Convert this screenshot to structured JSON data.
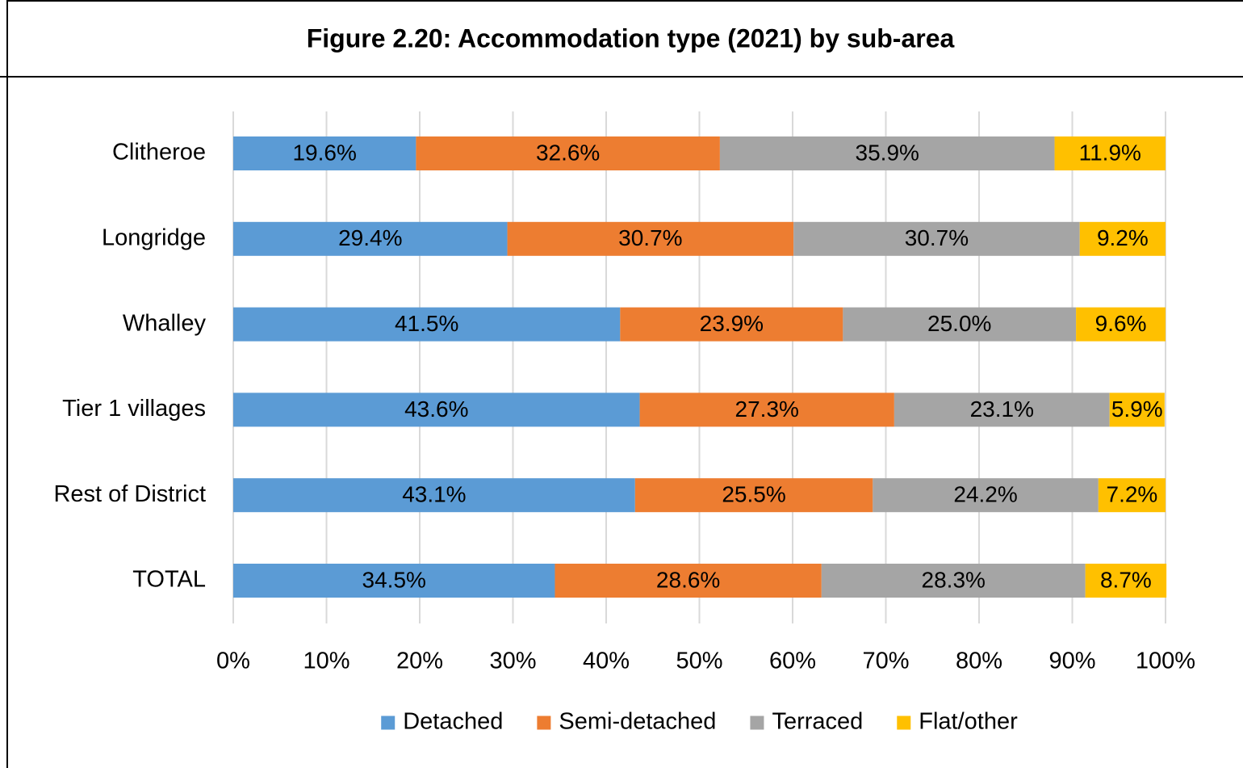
{
  "chart_data": {
    "type": "bar",
    "orientation": "horizontal",
    "stacked": true,
    "title": "Figure 2.20: Accommodation type (2021) by sub-area",
    "categories": [
      "Clitheroe",
      "Longridge",
      "Whalley",
      "Tier 1 villages",
      "Rest of District",
      "TOTAL"
    ],
    "series": [
      {
        "name": "Detached",
        "color": "#5b9bd5",
        "values": [
          19.6,
          29.4,
          41.5,
          43.6,
          43.1,
          34.5
        ],
        "value_labels": [
          "19.6%",
          "29.4%",
          "41.5%",
          "43.6%",
          "43.1%",
          "34.5%"
        ]
      },
      {
        "name": "Semi-detached",
        "color": "#ed7d31",
        "values": [
          32.6,
          30.7,
          23.9,
          27.3,
          25.5,
          28.6
        ],
        "value_labels": [
          "32.6%",
          "30.7%",
          "23.9%",
          "27.3%",
          "25.5%",
          "28.6%"
        ]
      },
      {
        "name": "Terraced",
        "color": "#a5a5a5",
        "values": [
          35.9,
          30.7,
          25.0,
          23.1,
          24.2,
          28.3
        ],
        "value_labels": [
          "35.9%",
          "30.7%",
          "25.0%",
          "23.1%",
          "24.2%",
          "28.3%"
        ]
      },
      {
        "name": "Flat/other",
        "color": "#ffc000",
        "values": [
          11.9,
          9.2,
          9.6,
          5.9,
          7.2,
          8.7
        ],
        "value_labels": [
          "11.9%",
          "9.2%",
          "9.6%",
          "5.9%",
          "7.2%",
          "8.7%"
        ]
      }
    ],
    "xlim": [
      0,
      100
    ],
    "xticks": [
      {
        "value": 0,
        "label": "0%"
      },
      {
        "value": 10,
        "label": "10%"
      },
      {
        "value": 20,
        "label": "20%"
      },
      {
        "value": 30,
        "label": "30%"
      },
      {
        "value": 40,
        "label": "40%"
      },
      {
        "value": 50,
        "label": "50%"
      },
      {
        "value": 60,
        "label": "60%"
      },
      {
        "value": 70,
        "label": "70%"
      },
      {
        "value": 80,
        "label": "80%"
      },
      {
        "value": 90,
        "label": "90%"
      },
      {
        "value": 100,
        "label": "100%"
      }
    ],
    "grid": true,
    "legend": "bottom"
  }
}
